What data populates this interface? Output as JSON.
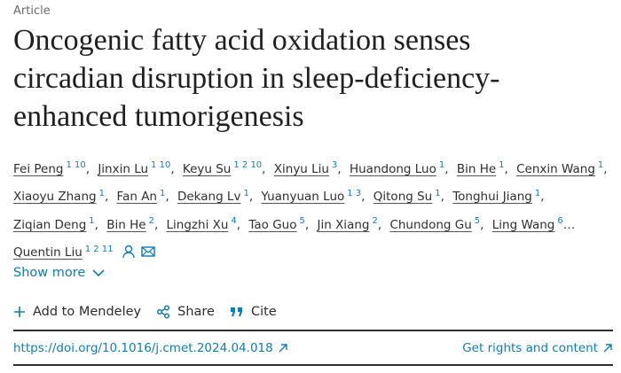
{
  "article_label": "Article",
  "title": "Oncogenic fatty acid oxidation senses circadian disruption in sleep-deficiency-enhanced tumorigenesis",
  "authors": [
    {
      "name": "Fei Peng",
      "sup": "1 10"
    },
    {
      "name": "Jinxin Lu",
      "sup": "1 10"
    },
    {
      "name": "Keyu Su",
      "sup": "1 2 10"
    },
    {
      "name": "Xinyu Liu",
      "sup": "3"
    },
    {
      "name": "Huandong Luo",
      "sup": "1"
    },
    {
      "name": "Bin He",
      "sup": "1"
    },
    {
      "name": "Cenxin Wang",
      "sup": "1"
    },
    {
      "name": "Xiaoyu Zhang",
      "sup": "1"
    },
    {
      "name": "Fan An",
      "sup": "1"
    },
    {
      "name": "Dekang Lv",
      "sup": "1"
    },
    {
      "name": "Yuanyuan Luo",
      "sup": "1 3"
    },
    {
      "name": "Qitong Su",
      "sup": "1"
    },
    {
      "name": "Tonghui Jiang",
      "sup": "1"
    },
    {
      "name": "Ziqian Deng",
      "sup": "1"
    },
    {
      "name": "Bin He",
      "sup": "2"
    },
    {
      "name": "Lingzhi Xu",
      "sup": "4"
    },
    {
      "name": "Tao Guo",
      "sup": "5"
    },
    {
      "name": "Jin Xiang",
      "sup": "2"
    },
    {
      "name": "Chundong Gu",
      "sup": "5"
    },
    {
      "name": "Ling Wang",
      "sup": "6"
    },
    {
      "name": "Quentin Liu",
      "sup": "1 2 11"
    }
  ],
  "separator": ",",
  "ellipsis": "…",
  "show_more": "Show more",
  "actions": [
    "Add to Mendeley",
    "Share",
    "Cite"
  ],
  "doi": "https://doi.org/10.1016/j.cmet.2024.04.018",
  "rights": "Get rights and content"
}
